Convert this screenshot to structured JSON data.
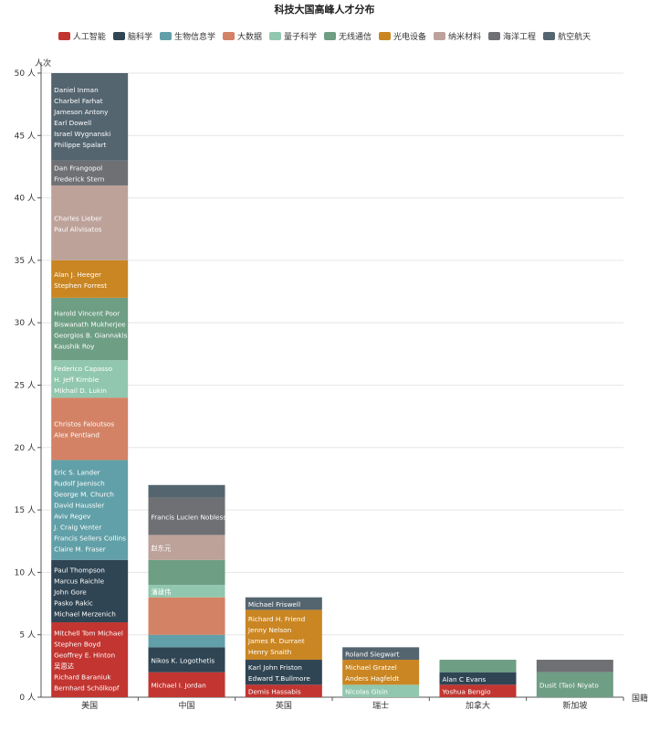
{
  "chart_data": {
    "type": "bar",
    "stacked": true,
    "title": "科技大国高峰人才分布",
    "ylabel": "人次",
    "xlabel": "国籍",
    "ylim": [
      0,
      50
    ],
    "yticks": [
      0,
      5,
      10,
      15,
      20,
      25,
      30,
      35,
      40,
      45,
      50
    ],
    "ytick_suffix": " 人",
    "grid": true,
    "legend_position": "top",
    "categories": [
      "美国",
      "中国",
      "英国",
      "瑞士",
      "加拿大",
      "新加坡"
    ],
    "series": [
      {
        "name": "人工智能",
        "color": "#c23531",
        "values": [
          6,
          2,
          1,
          0,
          1,
          0
        ]
      },
      {
        "name": "脑科学",
        "color": "#2f4554",
        "values": [
          5,
          2,
          2,
          0,
          1,
          0
        ]
      },
      {
        "name": "生物信息学",
        "color": "#61a0a8",
        "values": [
          8,
          1,
          0,
          0,
          0,
          0
        ]
      },
      {
        "name": "大数据",
        "color": "#d48265",
        "values": [
          5,
          3,
          0,
          0,
          0,
          0
        ]
      },
      {
        "name": "量子科学",
        "color": "#91c7ae",
        "values": [
          3,
          1,
          0,
          1,
          0,
          0
        ]
      },
      {
        "name": "无线通信",
        "color": "#6e9e84",
        "values": [
          5,
          2,
          0,
          0,
          1,
          2
        ]
      },
      {
        "name": "光电设备",
        "color": "#ca8622",
        "values": [
          3,
          0,
          4,
          2,
          0,
          0
        ]
      },
      {
        "name": "纳米材料",
        "color": "#bda29a",
        "values": [
          6,
          2,
          0,
          0,
          0,
          0
        ]
      },
      {
        "name": "海洋工程",
        "color": "#6e7074",
        "values": [
          2,
          3,
          0,
          0,
          0,
          1
        ]
      },
      {
        "name": "航空航天",
        "color": "#546570",
        "values": [
          7,
          1,
          1,
          1,
          0,
          0
        ]
      }
    ],
    "segment_labels": [
      [
        [
          "Mitchell Tom Michael",
          "Stephen Boyd",
          "Geoffrey E. Hinton",
          "吴恩达",
          "Richard Baraniuk",
          "Bernhard Schölkopf"
        ],
        [
          "Paul Thompson",
          "Marcus Raichle",
          "John Gore",
          "Pasko Rakic",
          "Michael Merzenich"
        ],
        [
          "Eric S. Lander",
          "Rudolf Jaenisch",
          "George M. Church",
          "David Haussler",
          "Aviv Regev",
          "J. Craig Venter",
          "Francis Sellers Collins",
          "Claire M. Fraser"
        ],
        [
          "Christos Faloutsos",
          "Alex Pentland"
        ],
        [
          "Federico Capasso",
          "H. Jeff Kimble",
          "Mikhail D. Lukin"
        ],
        [
          "Harold Vincent Poor",
          "Biswanath Mukherjee",
          "Georgios B. Giannakis",
          "Kaushik Roy"
        ],
        [
          "Alan J. Heeger",
          "Stephen Forrest"
        ],
        [
          "Charles Lieber",
          "Paul Alivisatos"
        ],
        [
          "Dan Frangopol",
          "Frederick Stern"
        ],
        [
          "Daniel Inman",
          "Charbel Farhat",
          "Jameson Antony",
          "Earl Dowell",
          "Israel Wygnanski",
          "Philippe Spalart"
        ]
      ],
      [
        [
          "Michael I. Jordan"
        ],
        [
          "Nikos K. Logothetis"
        ],
        [],
        [],
        [
          "潘建伟"
        ],
        [],
        [],
        [
          "赵东元"
        ],
        [
          "Francis Lucien Noblesse"
        ],
        []
      ],
      [
        [
          "Demis Hassabis"
        ],
        [
          "Karl John Friston",
          "Edward T.Bullmore"
        ],
        [],
        [],
        [],
        [],
        [
          "Richard H. Friend",
          "Jenny Nelson",
          "James R. Durrant",
          "Henry Snaith"
        ],
        [],
        [],
        [
          "Michael Friswell"
        ]
      ],
      [
        [],
        [],
        [],
        [],
        [
          "Nicolas Gisin"
        ],
        [],
        [
          "Michael Gratzel",
          "Anders Hagfeldt"
        ],
        [],
        [],
        [
          "Roland Siegwart"
        ]
      ],
      [
        [
          "Yoshua Bengio"
        ],
        [
          "Alan C Evans"
        ],
        [],
        [],
        [],
        [],
        [],
        [],
        [],
        []
      ],
      [
        [],
        [],
        [],
        [],
        [],
        [
          "Dusit (Tao) Niyato"
        ],
        [],
        [],
        [],
        []
      ]
    ]
  }
}
